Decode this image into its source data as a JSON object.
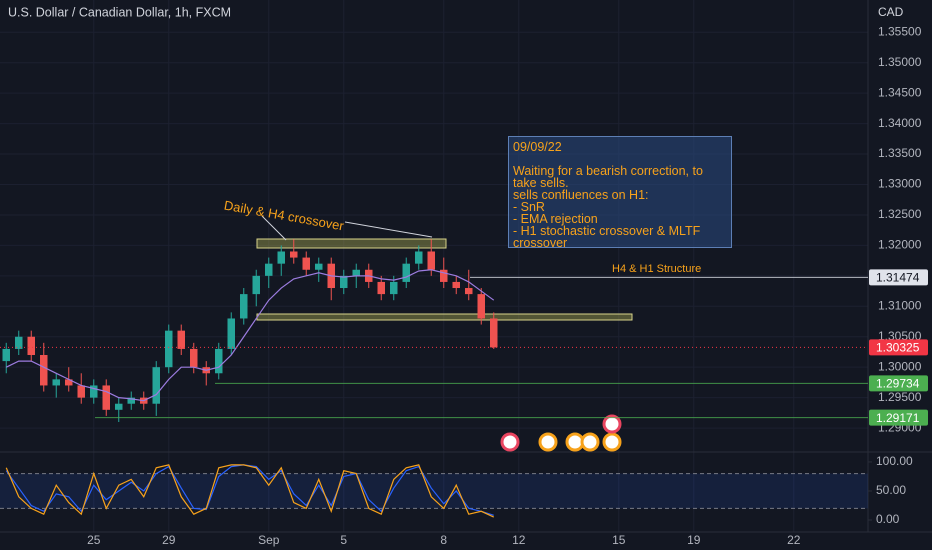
{
  "header": {
    "title": "U.S. Dollar / Canadian Dollar, 1h, FXCM",
    "currency": "CAD"
  },
  "chart_data": [
    {
      "type": "candlestick",
      "categories": [
        null,
        null,
        null,
        null,
        null,
        null,
        null,
        "25",
        null,
        null,
        null,
        null,
        null,
        "29",
        null,
        null,
        null,
        null,
        null,
        null,
        null,
        "Sep",
        null,
        null,
        null,
        null,
        null,
        "5",
        null,
        null,
        null,
        null,
        null,
        null,
        null,
        "8",
        null,
        null,
        null,
        null,
        null,
        "12",
        null,
        null,
        null,
        null,
        null,
        null,
        null,
        "15",
        null,
        null,
        null,
        null,
        null,
        "19",
        null,
        null,
        null,
        null,
        null,
        null,
        null,
        "22",
        null,
        null,
        null,
        null,
        null
      ],
      "open": [
        1.301,
        1.303,
        1.305,
        1.302,
        1.297,
        1.298,
        1.297,
        1.295,
        1.297,
        1.293,
        1.294,
        1.295,
        1.294,
        1.3,
        1.306,
        1.303,
        1.3,
        1.299,
        1.303,
        1.308,
        1.312,
        1.315,
        1.317,
        1.319,
        1.318,
        1.316,
        1.317,
        1.313,
        1.315,
        1.316,
        1.314,
        1.312,
        1.314,
        1.317,
        1.319,
        1.316,
        1.314,
        1.313,
        1.312,
        1.308,
        null,
        null,
        null,
        null,
        null,
        null,
        null,
        null,
        null,
        null,
        null,
        null,
        null,
        null,
        null,
        null,
        null,
        null,
        null,
        null,
        null,
        null,
        null,
        null,
        null,
        null,
        null,
        null,
        null
      ],
      "high": [
        1.304,
        1.306,
        1.306,
        1.304,
        1.299,
        1.3,
        1.299,
        1.298,
        1.298,
        1.295,
        1.296,
        1.296,
        1.301,
        1.307,
        1.307,
        1.304,
        1.301,
        1.304,
        1.309,
        1.313,
        1.316,
        1.318,
        1.32,
        1.321,
        1.319,
        1.318,
        1.318,
        1.316,
        1.317,
        1.317,
        1.315,
        1.315,
        1.318,
        1.32,
        1.321,
        1.318,
        1.315,
        1.316,
        1.313,
        1.309,
        null,
        null,
        null,
        null,
        null,
        null,
        null,
        null,
        null,
        null,
        null,
        null,
        null,
        null,
        null,
        null,
        null,
        null,
        null,
        null,
        null,
        null,
        null,
        null,
        null,
        null,
        null,
        null,
        null
      ],
      "low": [
        1.299,
        1.302,
        1.301,
        1.296,
        1.295,
        1.296,
        1.294,
        1.294,
        1.292,
        1.291,
        1.293,
        1.293,
        1.292,
        1.299,
        1.302,
        1.299,
        1.297,
        1.298,
        1.302,
        1.307,
        1.31,
        1.313,
        1.315,
        1.317,
        1.315,
        1.314,
        1.311,
        1.312,
        1.313,
        1.313,
        1.311,
        1.311,
        1.313,
        1.316,
        1.315,
        1.313,
        1.312,
        1.311,
        1.307,
        1.303,
        null,
        null,
        null,
        null,
        null,
        null,
        null,
        null,
        null,
        null,
        null,
        null,
        null,
        null,
        null,
        null,
        null,
        null,
        null,
        null,
        null,
        null,
        null,
        null,
        null,
        null,
        null,
        null,
        null
      ],
      "close": [
        1.303,
        1.305,
        1.302,
        1.297,
        1.298,
        1.297,
        1.295,
        1.297,
        1.293,
        1.294,
        1.295,
        1.294,
        1.3,
        1.306,
        1.303,
        1.3,
        1.299,
        1.303,
        1.308,
        1.312,
        1.315,
        1.317,
        1.319,
        1.318,
        1.316,
        1.317,
        1.313,
        1.315,
        1.316,
        1.314,
        1.312,
        1.314,
        1.317,
        1.319,
        1.316,
        1.314,
        1.313,
        1.312,
        1.308,
        1.30325,
        null,
        null,
        null,
        null,
        null,
        null,
        null,
        null,
        null,
        null,
        null,
        null,
        null,
        null,
        null,
        null,
        null,
        null,
        null,
        null,
        null,
        null,
        null,
        null,
        null,
        null,
        null,
        null,
        null
      ],
      "up_color": "#26a69a",
      "down_color": "#ef5350",
      "ema": {
        "color": "#9c7ce0",
        "values": [
          1.3,
          1.301,
          1.301,
          1.3,
          1.299,
          1.298,
          1.297,
          1.2965,
          1.296,
          1.295,
          1.2948,
          1.2945,
          1.2955,
          1.298,
          1.3,
          1.3,
          1.2995,
          1.3,
          1.302,
          1.305,
          1.308,
          1.311,
          1.313,
          1.3145,
          1.315,
          1.3155,
          1.315,
          1.3148,
          1.315,
          1.315,
          1.3145,
          1.3143,
          1.3148,
          1.3158,
          1.316,
          1.3155,
          1.315,
          1.314,
          1.3125,
          1.311,
          null,
          null,
          null,
          null,
          null,
          null,
          null,
          null,
          null,
          null,
          null,
          null,
          null,
          null,
          null,
          null,
          null,
          null,
          null,
          null,
          null,
          null,
          null,
          null,
          null,
          null,
          null,
          null,
          null
        ]
      },
      "ylim": [
        1.2864,
        1.3603
      ],
      "yticks": [
        {
          "value": 1.355,
          "label": "1.35500"
        },
        {
          "value": 1.35,
          "label": "1.35000"
        },
        {
          "value": 1.345,
          "label": "1.34500"
        },
        {
          "value": 1.34,
          "label": "1.34000"
        },
        {
          "value": 1.335,
          "label": "1.33500"
        },
        {
          "value": 1.33,
          "label": "1.33000"
        },
        {
          "value": 1.325,
          "label": "1.32500"
        },
        {
          "value": 1.32,
          "label": "1.32000"
        },
        {
          "value": 1.315,
          "label": "1.31500"
        },
        {
          "value": 1.31,
          "label": "1.31000"
        },
        {
          "value": 1.305,
          "label": "1.30500"
        },
        {
          "value": 1.3,
          "label": "1.30000"
        },
        {
          "value": 1.295,
          "label": "1.29500"
        },
        {
          "value": 1.29,
          "label": "1.29000"
        }
      ],
      "price_lines": [
        {
          "value": 1.31474,
          "color": "#e0e3eb"
        },
        {
          "value": 1.30325,
          "color": "#f23645"
        },
        {
          "value": 1.29734,
          "color": "#4caf50"
        },
        {
          "value": 1.29171,
          "color": "#4caf50"
        }
      ],
      "annotations": {
        "crossover": "Daily & H4 crossover",
        "structure": "H4 & H1 Structure",
        "note_date": "09/09/22",
        "note_lines": [
          "Waiting for a bearish correction, to",
          "take sells.",
          "sells confluences on H1:",
          "- SnR",
          "- EMA rejection",
          "- H1 stochastic crossover & MLTF",
          "crossover"
        ]
      }
    },
    {
      "type": "line",
      "series": [
        {
          "color": "#f7a21b",
          "values": [
            90,
            40,
            20,
            10,
            60,
            30,
            10,
            80,
            20,
            60,
            70,
            40,
            90,
            95,
            40,
            10,
            20,
            90,
            95,
            95,
            90,
            60,
            90,
            30,
            20,
            70,
            15,
            85,
            80,
            20,
            10,
            70,
            90,
            95,
            40,
            20,
            60,
            10,
            15,
            5,
            null,
            null,
            null,
            null,
            null,
            null,
            null,
            null,
            null,
            null,
            null,
            null,
            null,
            null,
            null,
            null,
            null,
            null,
            null,
            null,
            null,
            null,
            null,
            null,
            null,
            null,
            null,
            null,
            null
          ]
        },
        {
          "color": "#2962ff",
          "values": [
            85,
            55,
            25,
            15,
            45,
            40,
            15,
            60,
            35,
            50,
            65,
            50,
            80,
            92,
            55,
            20,
            18,
            75,
            92,
            95,
            92,
            70,
            85,
            45,
            25,
            60,
            25,
            75,
            80,
            35,
            15,
            55,
            85,
            92,
            55,
            28,
            50,
            20,
            15,
            8,
            null,
            null,
            null,
            null,
            null,
            null,
            null,
            null,
            null,
            null,
            null,
            null,
            null,
            null,
            null,
            null,
            null,
            null,
            null,
            null,
            null,
            null,
            null,
            null,
            null,
            null,
            null,
            null,
            null
          ]
        }
      ],
      "band": [
        20,
        80
      ],
      "ylim": [
        -20.7,
        112
      ],
      "yticks": [
        {
          "value": 100,
          "label": "100.00"
        },
        {
          "value": 50,
          "label": "50.00"
        },
        {
          "value": 0,
          "label": "0.00"
        }
      ]
    }
  ]
}
